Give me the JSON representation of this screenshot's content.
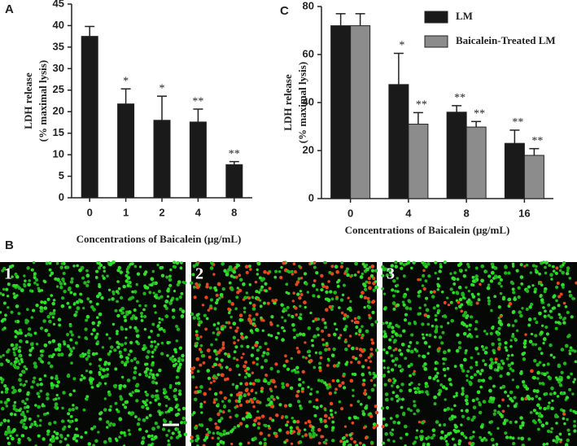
{
  "panel_labels": {
    "a": "A",
    "b": "B",
    "c": "C"
  },
  "chart_data": [
    {
      "type": "bar",
      "ylabel": [
        "LDH release",
        "(% maximal lysis)"
      ],
      "xlabel": "Concentrations of Baicalein (μg/mL)",
      "categories": [
        "0",
        "1",
        "2",
        "4",
        "8"
      ],
      "values": [
        37.5,
        21.8,
        18,
        17.6,
        7.7
      ],
      "errors": [
        2.3,
        3.5,
        5.6,
        3.0,
        0.7
      ],
      "significance": [
        null,
        "*",
        "*",
        "**",
        "**"
      ],
      "color": "#1a1a1a",
      "ylim": [
        0,
        45
      ],
      "yticks": [
        0,
        5,
        10,
        15,
        20,
        25,
        30,
        35,
        40,
        45
      ]
    },
    {
      "type": "bar",
      "ylabel": [
        "LDH release",
        "(% maximal lysis)"
      ],
      "xlabel": "Concentrations of Baicalein (μg/mL)",
      "categories": [
        "0",
        "4",
        "8",
        "16"
      ],
      "series": [
        {
          "name": "LM",
          "color": "#1a1a1a",
          "values": [
            72,
            47.5,
            36,
            23
          ],
          "errors": [
            5,
            13,
            2.7,
            5.5
          ],
          "significance": [
            null,
            "*",
            "**",
            "**"
          ]
        },
        {
          "name": "Baicalein-Treated LM",
          "color": "#8c8c8c",
          "values": [
            72,
            31,
            29.8,
            18
          ],
          "errors": [
            5,
            4.8,
            2.3,
            2.8
          ],
          "significance": [
            null,
            "**",
            "**",
            "**"
          ]
        }
      ],
      "ylim": [
        0,
        80
      ],
      "yticks": [
        0,
        20,
        40,
        60,
        80
      ]
    }
  ],
  "images": {
    "labels": [
      "1",
      "2",
      "3"
    ]
  }
}
